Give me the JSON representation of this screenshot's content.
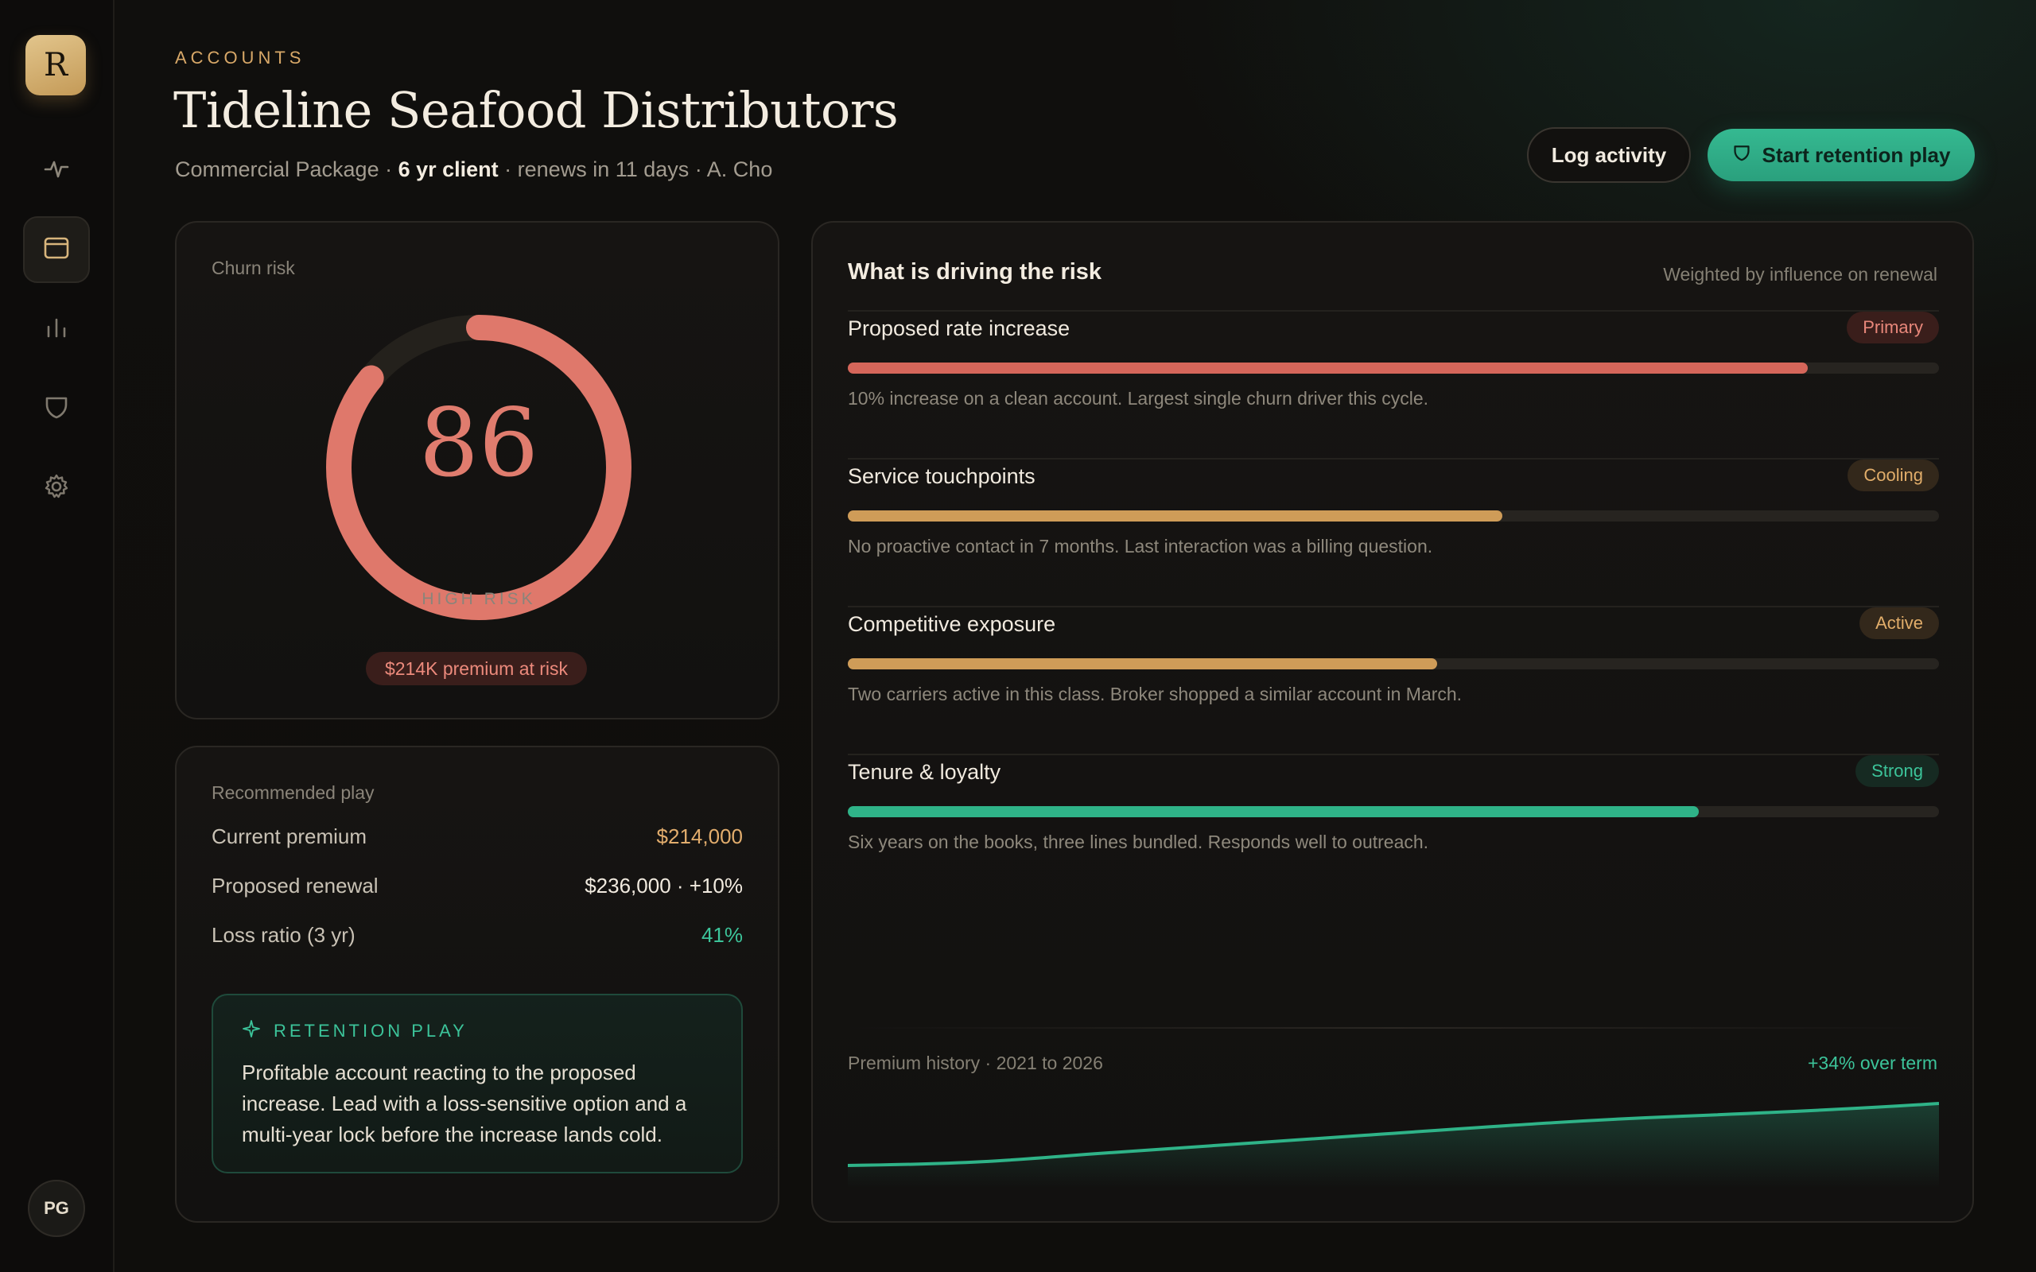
{
  "app": {
    "logo_letter": "R",
    "user_initials": "PG"
  },
  "nav": [
    {
      "name": "activity",
      "active": false
    },
    {
      "name": "accounts",
      "active": true
    },
    {
      "name": "reports",
      "active": false
    },
    {
      "name": "plays",
      "active": false
    },
    {
      "name": "settings",
      "active": false
    }
  ],
  "header": {
    "eyebrow": "ACCOUNTS",
    "title": "Tideline Seafood Distributors",
    "package": "Commercial Package",
    "tenure": "6 yr client",
    "renewal": "renews in 11 days",
    "owner": "A. Cho"
  },
  "actions": {
    "log_activity": "Log activity",
    "start_retention": "Start retention play"
  },
  "churn": {
    "label": "Churn risk",
    "score": "86",
    "score_fraction": 0.86,
    "level": "HIGH RISK",
    "premium_at_risk": "$214K premium at risk"
  },
  "recommendation": {
    "label": "Recommended play",
    "rows": [
      {
        "key": "Current premium",
        "value": "$214,000",
        "color": "#e2ad6d"
      },
      {
        "key": "Proposed renewal",
        "value": "$236,000 · +10%",
        "color": "#f1eadf"
      },
      {
        "key": "Loss ratio (3 yr)",
        "value": "41%",
        "color": "#3cc49a"
      }
    ],
    "retention_heading": "RETENTION PLAY",
    "retention_text": "Profitable account reacting to the proposed increase. Lead with a loss-sensitive option and a multi-year lock before the increase lands cold."
  },
  "drivers": {
    "title": "What is driving the risk",
    "note": "Weighted by influence on renewal",
    "items": [
      {
        "name": "Proposed rate increase",
        "badge": "Primary",
        "level": 0.88,
        "bar_color": "#d5665a",
        "badge_bg": "#3a1e1b",
        "badge_fg": "#e8877a",
        "desc": "10% increase on a clean account. Largest single churn driver this cycle."
      },
      {
        "name": "Service touchpoints",
        "badge": "Cooling",
        "level": 0.6,
        "bar_color": "#cf9c58",
        "badge_bg": "#33281b",
        "badge_fg": "#e1ad6a",
        "desc": "No proactive contact in 7 months. Last interaction was a billing question."
      },
      {
        "name": "Competitive exposure",
        "badge": "Active",
        "level": 0.54,
        "bar_color": "#cf9c58",
        "badge_bg": "#33281b",
        "badge_fg": "#e1ad6a",
        "desc": "Two carriers active in this class. Broker shopped a similar account in March."
      },
      {
        "name": "Tenure & loyalty",
        "badge": "Strong",
        "level": 0.78,
        "bar_color": "#2fb388",
        "badge_bg": "#162a22",
        "badge_fg": "#3cc49a",
        "desc": "Six years on the books, three lines bundled. Responds well to outreach."
      }
    ]
  },
  "history": {
    "label": "Premium history · 2021 to 2026",
    "delta": "+34% over term",
    "line_color": "#2fb388"
  }
}
